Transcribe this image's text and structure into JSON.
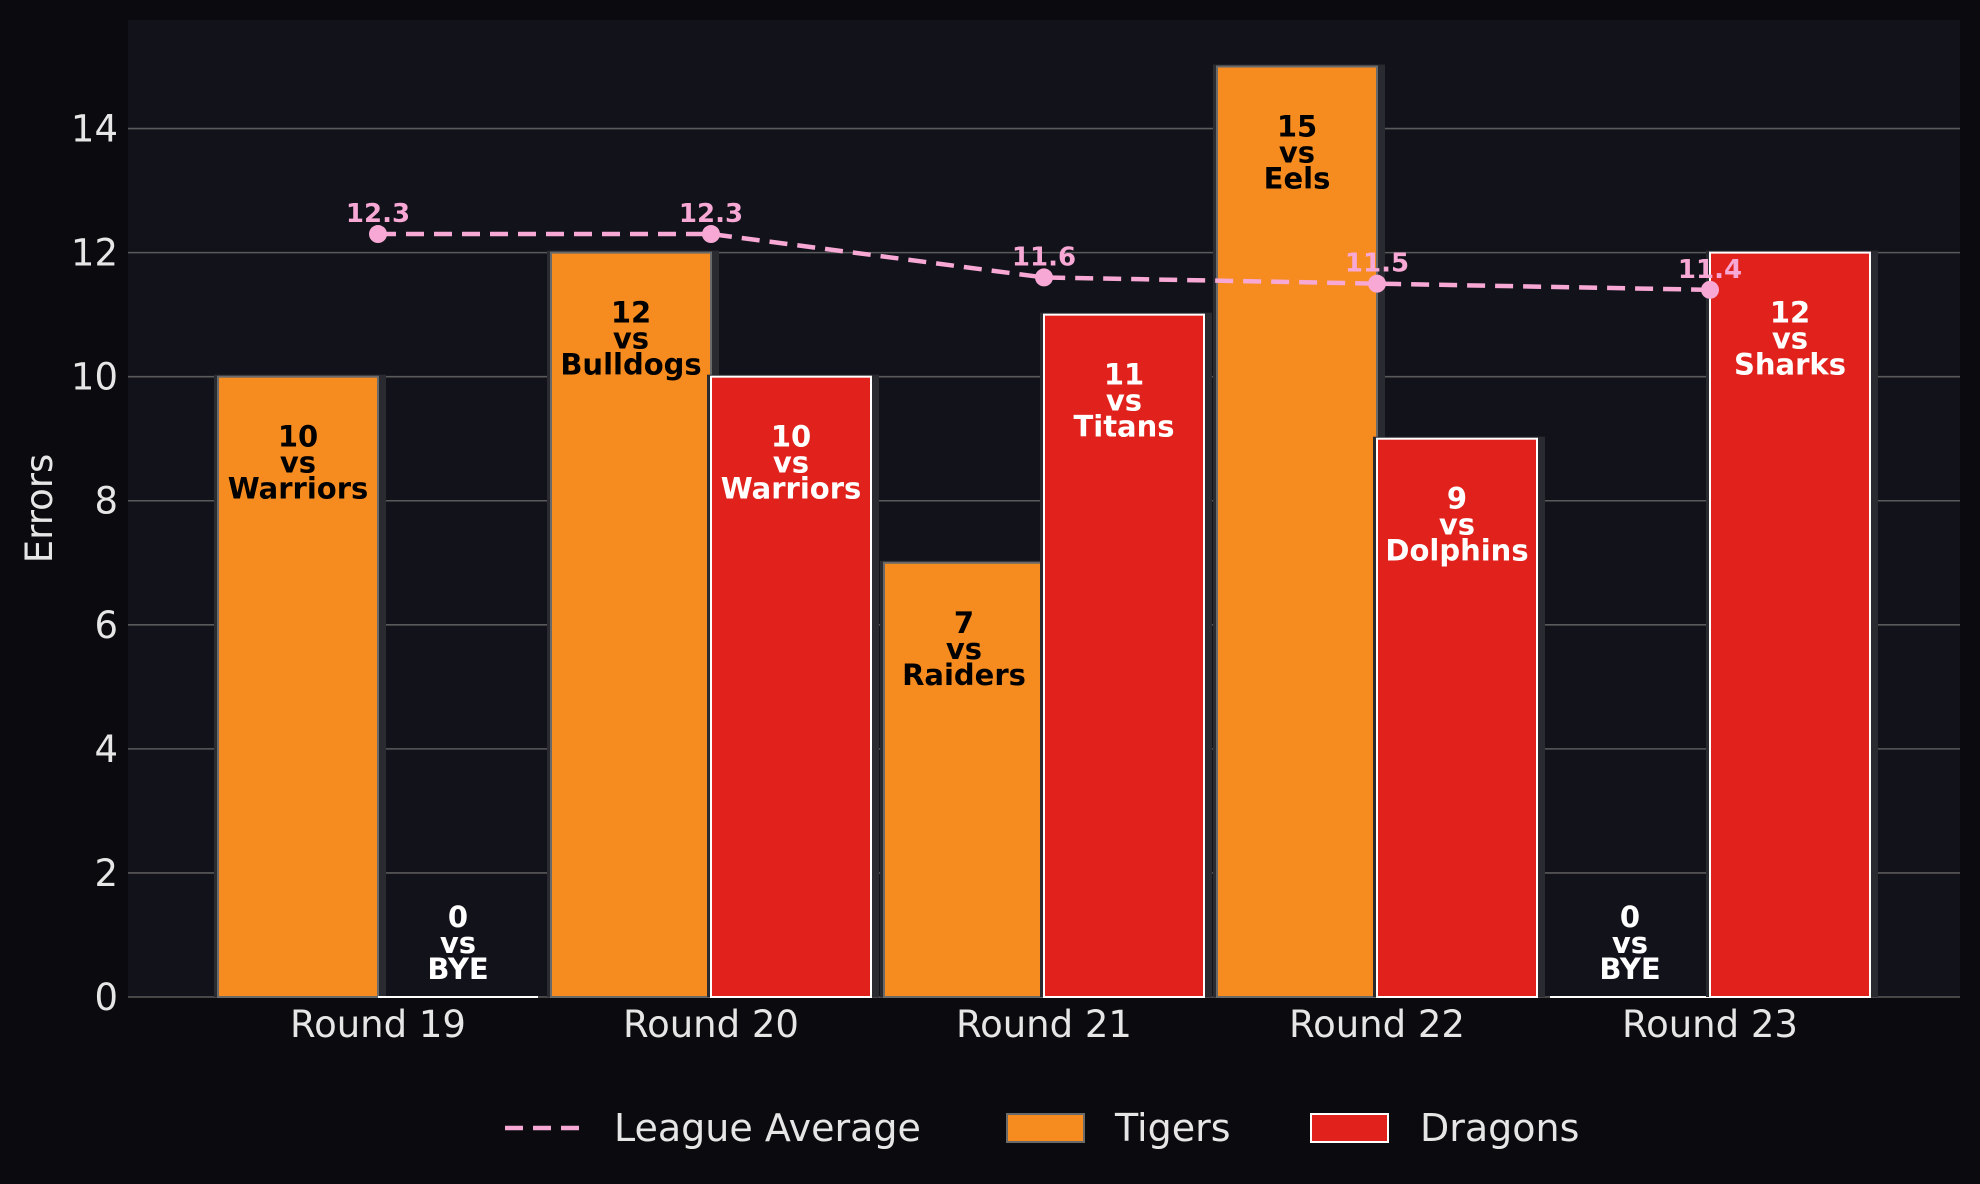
{
  "colors": {
    "figure_bg": "#0b0b0f",
    "plot_bg": "#12131a",
    "grid": "#5a5a5a",
    "text": "#e6e6e6",
    "tigers": "#f68c1f",
    "dragons": "#e1221c",
    "league_average": "#f7a8d4"
  },
  "chart_data": {
    "type": "bar",
    "categories": [
      "Round 19",
      "Round 20",
      "Round 21",
      "Round 22",
      "Round 23"
    ],
    "xlabel": "",
    "ylabel": "Errors",
    "ylim": [
      0,
      15.75
    ],
    "yticks": [
      0,
      2,
      4,
      6,
      8,
      10,
      12,
      14
    ],
    "grid": true,
    "legend_position": "bottom-center",
    "series": [
      {
        "name": "Tigers",
        "values": [
          10,
          12,
          7,
          15,
          0
        ],
        "opponents": [
          "Warriors",
          "Bulldogs",
          "Raiders",
          "Eels",
          "BYE"
        ]
      },
      {
        "name": "Dragons",
        "values": [
          0,
          10,
          11,
          9,
          12
        ],
        "opponents": [
          "BYE",
          "Warriors",
          "Titans",
          "Dolphins",
          "Sharks"
        ]
      }
    ],
    "line_series": {
      "name": "League Average",
      "style": "dashed",
      "values": [
        12.3,
        12.3,
        11.6,
        11.5,
        11.4
      ]
    },
    "vs_text": "vs"
  }
}
